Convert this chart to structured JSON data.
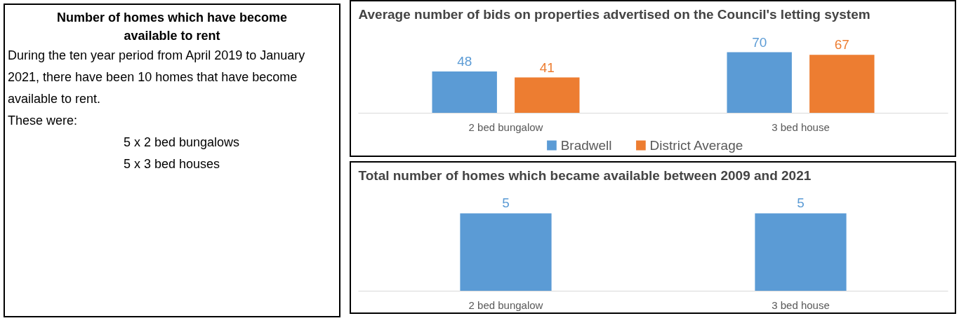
{
  "chart_data": [
    {
      "type": "other",
      "title": "Number of homes which have become available to rent",
      "annotations": [
        "During the ten year period from April 2019 to January 2021, there have been 10 homes that have become available to rent.",
        "These were:",
        "5 x 2 bed bungalows",
        "5 x 3 bed houses"
      ]
    },
    {
      "type": "bar",
      "title": "Average number of bids on properties advertised on the Council's letting system",
      "categories": [
        "2 bed bungalow",
        "3 bed house"
      ],
      "series": [
        {
          "name": "Bradwell",
          "color": "#5b9bd5",
          "values": [
            48,
            70
          ]
        },
        {
          "name": "District Average",
          "color": "#ed7d31",
          "values": [
            41,
            67
          ]
        }
      ],
      "data_labels": true,
      "legend": "bottom"
    },
    {
      "type": "bar",
      "title": "Total number of homes which became available between 2009 and 2021",
      "categories": [
        "2 bed bungalow",
        "3 bed house"
      ],
      "series": [
        {
          "color": "#5b9bd5",
          "values": [
            5,
            5
          ]
        }
      ],
      "data_labels": true
    }
  ]
}
